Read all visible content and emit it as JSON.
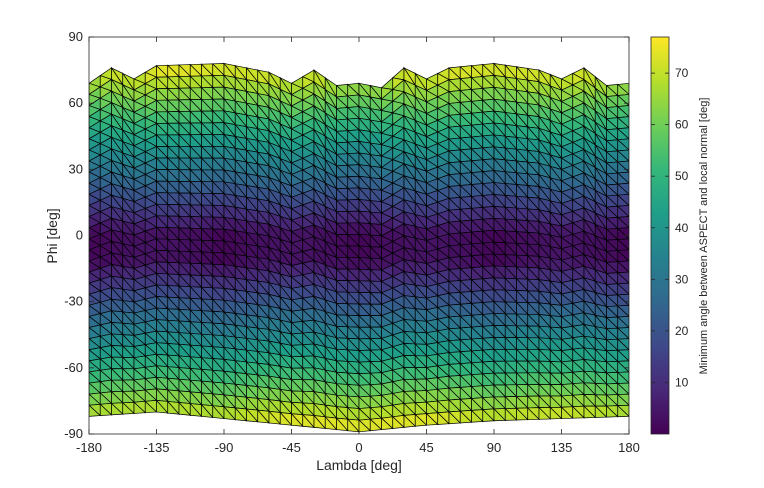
{
  "chart_data": {
    "type": "heatmap",
    "title": "",
    "xlabel": "Lambda [deg]",
    "ylabel": "Phi [deg]",
    "xlim": [
      -180,
      180
    ],
    "ylim": [
      -90,
      90
    ],
    "x_ticks": [
      -180,
      -135,
      -90,
      -45,
      0,
      45,
      90,
      135,
      180
    ],
    "y_ticks": [
      -90,
      -60,
      -30,
      0,
      30,
      60,
      90
    ],
    "x_tick_labels": [
      "-180",
      "-135",
      "-90",
      "-45",
      "0",
      "45",
      "90",
      "135",
      "180"
    ],
    "y_tick_labels": [
      "-90",
      "-60",
      "-30",
      "0",
      "30",
      "60",
      "90"
    ],
    "colorbar": {
      "label": "Minimum angle between ASPECT and local normal [deg]",
      "range": [
        0,
        77
      ],
      "ticks": [
        10,
        20,
        30,
        40,
        50,
        60,
        70
      ],
      "tick_labels": [
        "10",
        "20",
        "30",
        "40",
        "50",
        "60",
        "70"
      ],
      "colormap": [
        "#440154",
        "#482878",
        "#3e4989",
        "#31688e",
        "#26828e",
        "#1f9e89",
        "#35b779",
        "#6ece58",
        "#b5de2b",
        "#fde725"
      ]
    },
    "surface": {
      "description": "Triangulated mesh surface; color = minimum angle (deg), roughly proportional to |Phi| with low-angle band near Phi≈-5",
      "top_boundary": [
        [
          -180,
          69
        ],
        [
          -165,
          76
        ],
        [
          -150,
          71
        ],
        [
          -135,
          77
        ],
        [
          -90,
          78
        ],
        [
          -60,
          74
        ],
        [
          -45,
          69
        ],
        [
          -30,
          75
        ],
        [
          -15,
          68
        ],
        [
          0,
          69
        ],
        [
          15,
          67
        ],
        [
          30,
          76
        ],
        [
          45,
          71
        ],
        [
          60,
          76
        ],
        [
          90,
          78
        ],
        [
          120,
          75
        ],
        [
          135,
          71
        ],
        [
          150,
          76
        ],
        [
          165,
          68
        ],
        [
          180,
          69
        ]
      ],
      "bottom_boundary": [
        [
          -180,
          -82
        ],
        [
          -135,
          -80
        ],
        [
          -90,
          -83
        ],
        [
          -45,
          -86
        ],
        [
          0,
          -89
        ],
        [
          45,
          -86
        ],
        [
          90,
          -84
        ],
        [
          135,
          -83
        ],
        [
          180,
          -82
        ]
      ],
      "min_band_phi": -5,
      "max_value": 77,
      "grid_lines": {
        "lambda_step": 15,
        "phi_step": 5
      }
    },
    "grid": false,
    "legend": "none"
  }
}
